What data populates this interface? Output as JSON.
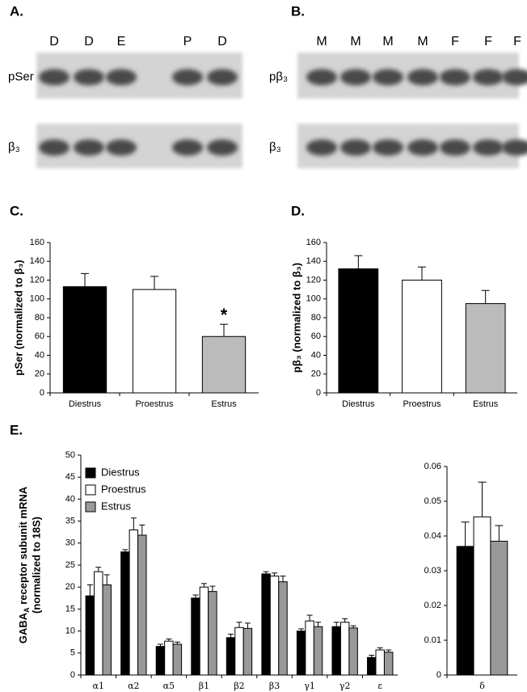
{
  "blots": [
    {
      "label": "A.",
      "lanes": [
        "D",
        "D",
        "E",
        "P",
        "D"
      ],
      "rows": [
        "pSer",
        "β₃"
      ]
    },
    {
      "label": "B.",
      "lanes": [
        "M",
        "M",
        "M",
        "M",
        "F",
        "F",
        "F"
      ],
      "rows": [
        "pβ₃",
        "β₃"
      ]
    }
  ],
  "chart_data": [
    {
      "type": "bar",
      "panel": "C.",
      "ylabel": "pSer (normalized to β₃)",
      "categories": [
        "Diestrus",
        "Proestrus",
        "Estrus"
      ],
      "values": [
        113,
        110,
        60
      ],
      "errors": [
        14,
        14,
        13
      ],
      "colors": [
        "#000000",
        "#ffffff",
        "#bbbbbb"
      ],
      "ylim": [
        0,
        160
      ],
      "yticks": [
        0,
        20,
        40,
        60,
        80,
        100,
        120,
        140,
        160
      ],
      "annotations": [
        {
          "text": "*",
          "category": "Estrus"
        }
      ]
    },
    {
      "type": "bar",
      "panel": "D.",
      "ylabel": "pβ₃ (normalized to β₃)",
      "categories": [
        "Diestrus",
        "Proestrus",
        "Estrus"
      ],
      "values": [
        132,
        120,
        95
      ],
      "errors": [
        14,
        14,
        14
      ],
      "colors": [
        "#000000",
        "#ffffff",
        "#bbbbbb"
      ],
      "ylim": [
        0,
        160
      ],
      "yticks": [
        0,
        20,
        40,
        60,
        80,
        100,
        120,
        140,
        160
      ]
    },
    {
      "type": "bar",
      "panel": "E.",
      "ylabel": [
        "GABA",
        "A",
        " receptor subunit mRNA",
        "(normalized to 18S)"
      ],
      "categories": [
        "α1",
        "α2",
        "α5",
        "β1",
        "β2",
        "β3",
        "γ1",
        "γ2",
        "ε"
      ],
      "series": [
        {
          "name": "Diestrus",
          "color": "#000000",
          "values": [
            18,
            28,
            6.5,
            17.5,
            8.5,
            23,
            10,
            11,
            4
          ],
          "errors": [
            2.5,
            0.5,
            0.5,
            0.7,
            0.8,
            0.5,
            0.5,
            1,
            0.5
          ]
        },
        {
          "name": "Proestrus",
          "color": "#ffffff",
          "values": [
            23.5,
            33,
            7.7,
            20,
            10.8,
            22.5,
            12.3,
            12,
            5.7
          ],
          "errors": [
            1,
            2.7,
            0.5,
            0.8,
            1.2,
            0.7,
            1.3,
            0.8,
            0.5
          ]
        },
        {
          "name": "Estrus",
          "color": "#999999",
          "values": [
            20.5,
            31.8,
            7,
            19,
            10.6,
            21.2,
            11,
            10.7,
            5.2
          ],
          "errors": [
            2.3,
            2.3,
            0.5,
            1.2,
            1.2,
            1.3,
            1,
            0.5,
            0.5
          ]
        }
      ],
      "ylim": [
        0,
        50
      ],
      "yticks": [
        0,
        5,
        10,
        15,
        20,
        25,
        30,
        35,
        40,
        45,
        50
      ],
      "legend": "upper left"
    },
    {
      "type": "bar",
      "categories": [
        "δ"
      ],
      "series": [
        {
          "color": "#000000",
          "values": [
            0.037
          ],
          "errors": [
            0.007
          ]
        },
        {
          "color": "#ffffff",
          "values": [
            0.0455
          ],
          "errors": [
            0.01
          ]
        },
        {
          "color": "#999999",
          "values": [
            0.0385
          ],
          "errors": [
            0.0045
          ]
        }
      ],
      "ylim": [
        0,
        0.06
      ],
      "yticks": [
        0,
        0.01,
        0.02,
        0.03,
        0.04,
        0.05,
        0.06
      ]
    }
  ]
}
